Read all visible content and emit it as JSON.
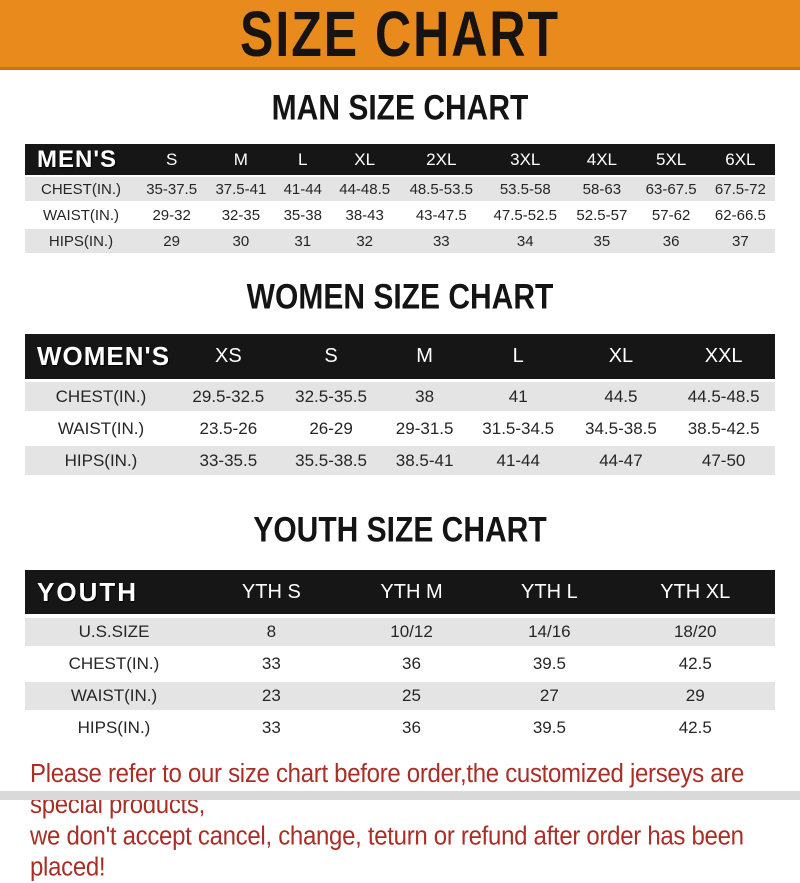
{
  "banner": {
    "title": "SIZE CHART",
    "bg_color": "#e98a1d"
  },
  "sections": [
    {
      "heading": "MAN SIZE CHART",
      "table": {
        "corner": "MEN'S",
        "columns": [
          "S",
          "M",
          "L",
          "XL",
          "2XL",
          "3XL",
          "4XL",
          "5XL",
          "6XL"
        ],
        "rows": [
          {
            "label": "CHEST(IN.)",
            "values": [
              "35-37.5",
              "37.5-41",
              "41-44",
              "44-48.5",
              "48.5-53.5",
              "53.5-58",
              "58-63",
              "63-67.5",
              "67.5-72"
            ]
          },
          {
            "label": "WAIST(IN.)",
            "values": [
              "29-32",
              "32-35",
              "35-38",
              "38-43",
              "43-47.5",
              "47.5-52.5",
              "52.5-57",
              "57-62",
              "62-66.5"
            ]
          },
          {
            "label": "HIPS(IN.)",
            "values": [
              "29",
              "30",
              "31",
              "32",
              "33",
              "34",
              "35",
              "36",
              "37"
            ]
          }
        ]
      }
    },
    {
      "heading": "WOMEN SIZE CHART",
      "table": {
        "corner": "WOMEN'S",
        "columns": [
          "XS",
          "S",
          "M",
          "L",
          "XL",
          "XXL"
        ],
        "rows": [
          {
            "label": "CHEST(IN.)",
            "values": [
              "29.5-32.5",
              "32.5-35.5",
              "38",
              "41",
              "44.5",
              "44.5-48.5"
            ]
          },
          {
            "label": "WAIST(IN.)",
            "values": [
              "23.5-26",
              "26-29",
              "29-31.5",
              "31.5-34.5",
              "34.5-38.5",
              "38.5-42.5"
            ]
          },
          {
            "label": "HIPS(IN.)",
            "values": [
              "33-35.5",
              "35.5-38.5",
              "38.5-41",
              "41-44",
              "44-47",
              "47-50"
            ]
          }
        ]
      }
    },
    {
      "heading": "YOUTH SIZE CHART",
      "table": {
        "corner": "YOUTH",
        "columns": [
          "YTH S",
          "YTH M",
          "YTH L",
          "YTH XL"
        ],
        "rows": [
          {
            "label": "U.S.SIZE",
            "values": [
              "8",
              "10/12",
              "14/16",
              "18/20"
            ]
          },
          {
            "label": "CHEST(IN.)",
            "values": [
              "33",
              "36",
              "39.5",
              "42.5"
            ]
          },
          {
            "label": "WAIST(IN.)",
            "values": [
              "23",
              "25",
              "27",
              "29"
            ]
          },
          {
            "label": "HIPS(IN.)",
            "values": [
              "33",
              "36",
              "39.5",
              "42.5"
            ]
          }
        ]
      }
    }
  ],
  "footer": {
    "line1": "Please refer to our size chart before order,the customized jerseys are special products,",
    "line2": "we don't accept cancel, change, teturn or refund after order has been placed!",
    "text_color": "#a82e26"
  }
}
